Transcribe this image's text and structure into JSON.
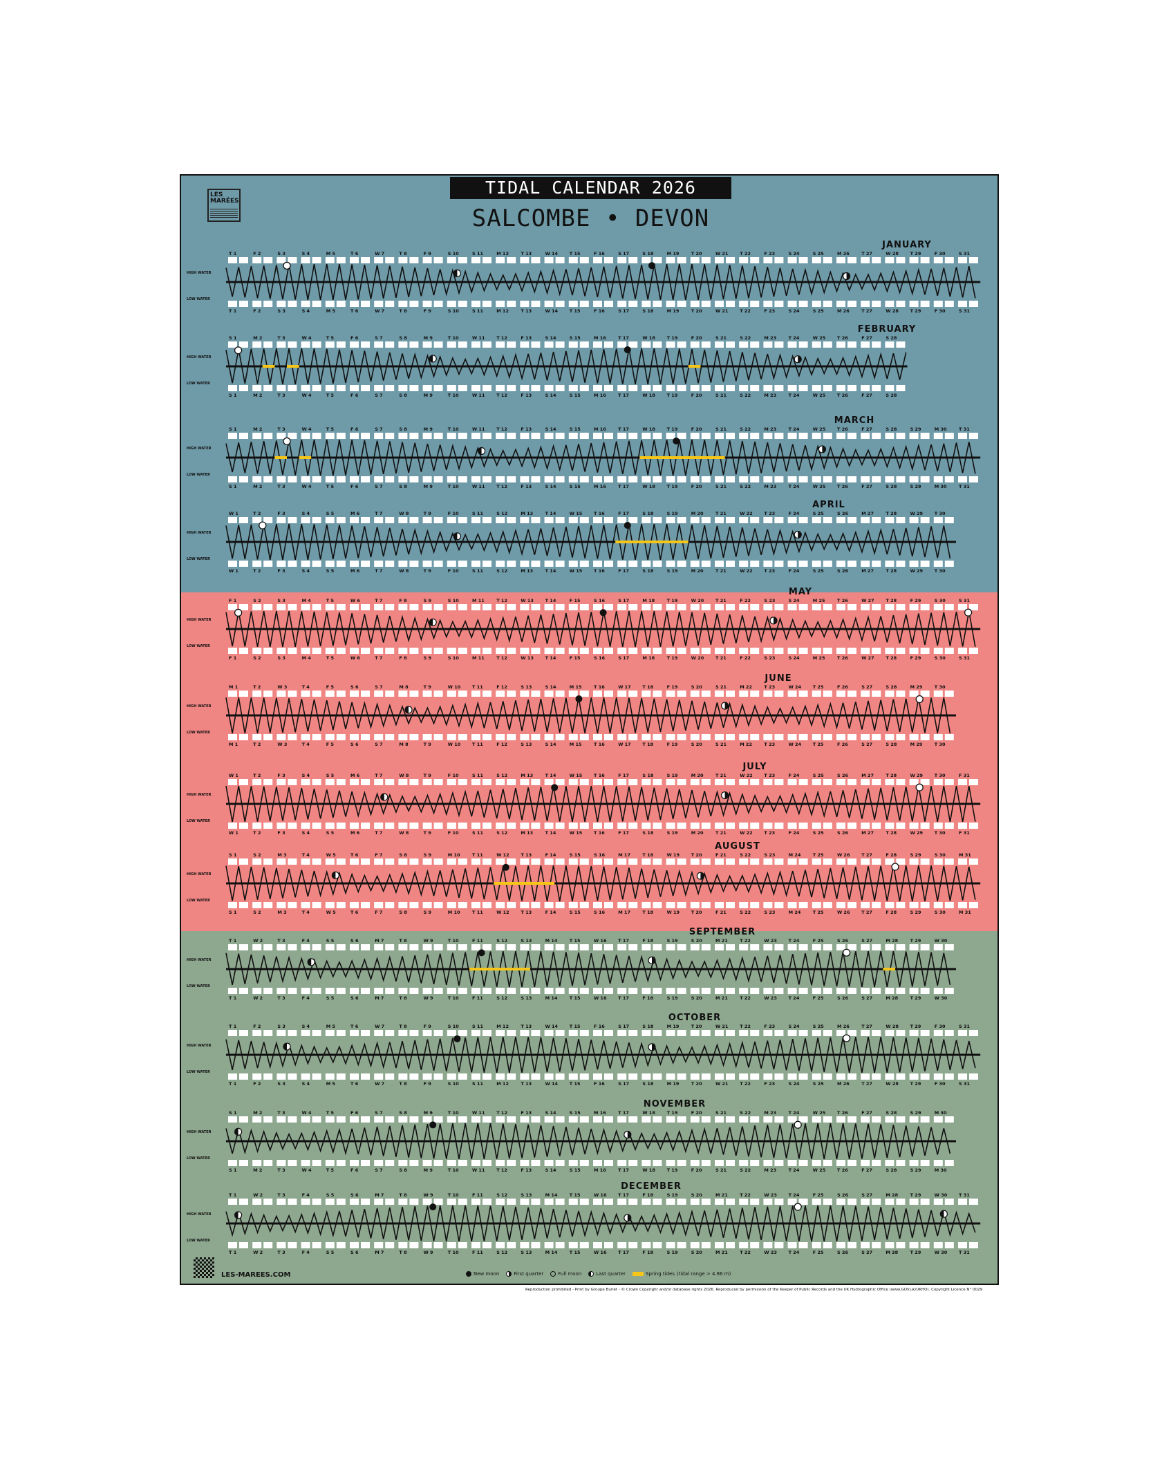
{
  "header": {
    "title": "TIDAL CALENDAR 2026",
    "subtitle": "SALCOMBE • DEVON",
    "logo_text": "LES MARÉES"
  },
  "weekday_letters": [
    "M",
    "T",
    "W",
    "T",
    "F",
    "S",
    "S"
  ],
  "side_labels": {
    "high": "HIGH WATER",
    "low": "LOW WATER"
  },
  "colors": {
    "q1_band": "#6f9aa8",
    "q2_band": "#f08683",
    "q3_band": "#8ea78f",
    "spring_tide": "#f5c518",
    "ink": "#111111",
    "label_box": "#ffffff"
  },
  "months": [
    {
      "name": "JANUARY",
      "days": 31,
      "first_weekday": 3,
      "moons": [
        {
          "day": 3,
          "phase": "full"
        },
        {
          "day": 10,
          "phase": "last"
        },
        {
          "day": 18,
          "phase": "new"
        },
        {
          "day": 26,
          "phase": "first"
        }
      ],
      "spring_tides": []
    },
    {
      "name": "FEBRUARY",
      "days": 28,
      "first_weekday": 6,
      "moons": [
        {
          "day": 1,
          "phase": "full"
        },
        {
          "day": 9,
          "phase": "last"
        },
        {
          "day": 17,
          "phase": "new"
        },
        {
          "day": 24,
          "phase": "first"
        }
      ],
      "spring_tides": [
        [
          2.5,
          3
        ],
        [
          3.5,
          4
        ],
        [
          20,
          20.5
        ]
      ]
    },
    {
      "name": "MARCH",
      "days": 31,
      "first_weekday": 6,
      "moons": [
        {
          "day": 3,
          "phase": "full"
        },
        {
          "day": 11,
          "phase": "last"
        },
        {
          "day": 19,
          "phase": "new"
        },
        {
          "day": 25,
          "phase": "first"
        }
      ],
      "spring_tides": [
        [
          3,
          3.5
        ],
        [
          4,
          4.5
        ],
        [
          18,
          21.5
        ]
      ]
    },
    {
      "name": "APRIL",
      "days": 30,
      "first_weekday": 2,
      "moons": [
        {
          "day": 2,
          "phase": "full"
        },
        {
          "day": 10,
          "phase": "last"
        },
        {
          "day": 17,
          "phase": "new"
        },
        {
          "day": 24,
          "phase": "first"
        }
      ],
      "spring_tides": [
        [
          17,
          20
        ]
      ]
    },
    {
      "name": "MAY",
      "days": 31,
      "first_weekday": 4,
      "moons": [
        {
          "day": 1,
          "phase": "full"
        },
        {
          "day": 9,
          "phase": "last"
        },
        {
          "day": 16,
          "phase": "new"
        },
        {
          "day": 23,
          "phase": "first"
        },
        {
          "day": 31,
          "phase": "full"
        }
      ],
      "spring_tides": []
    },
    {
      "name": "JUNE",
      "days": 30,
      "first_weekday": 0,
      "moons": [
        {
          "day": 8,
          "phase": "last"
        },
        {
          "day": 15,
          "phase": "new"
        },
        {
          "day": 21,
          "phase": "first"
        },
        {
          "day": 29,
          "phase": "full"
        }
      ],
      "spring_tides": []
    },
    {
      "name": "JULY",
      "days": 31,
      "first_weekday": 2,
      "moons": [
        {
          "day": 7,
          "phase": "last"
        },
        {
          "day": 14,
          "phase": "new"
        },
        {
          "day": 21,
          "phase": "first"
        },
        {
          "day": 29,
          "phase": "full"
        }
      ],
      "spring_tides": []
    },
    {
      "name": "AUGUST",
      "days": 31,
      "first_weekday": 5,
      "moons": [
        {
          "day": 5,
          "phase": "last"
        },
        {
          "day": 12,
          "phase": "new"
        },
        {
          "day": 20,
          "phase": "first"
        },
        {
          "day": 28,
          "phase": "full"
        }
      ],
      "spring_tides": [
        [
          12,
          14.5
        ]
      ]
    },
    {
      "name": "SEPTEMBER",
      "days": 30,
      "first_weekday": 1,
      "moons": [
        {
          "day": 4,
          "phase": "last"
        },
        {
          "day": 11,
          "phase": "new"
        },
        {
          "day": 18,
          "phase": "first"
        },
        {
          "day": 26,
          "phase": "full"
        }
      ],
      "spring_tides": [
        [
          11,
          13.5
        ],
        [
          28,
          28.5
        ]
      ]
    },
    {
      "name": "OCTOBER",
      "days": 31,
      "first_weekday": 3,
      "moons": [
        {
          "day": 3,
          "phase": "last"
        },
        {
          "day": 10,
          "phase": "new"
        },
        {
          "day": 18,
          "phase": "first"
        },
        {
          "day": 26,
          "phase": "full"
        }
      ],
      "spring_tides": []
    },
    {
      "name": "NOVEMBER",
      "days": 30,
      "first_weekday": 6,
      "moons": [
        {
          "day": 1,
          "phase": "last"
        },
        {
          "day": 9,
          "phase": "new"
        },
        {
          "day": 17,
          "phase": "first"
        },
        {
          "day": 24,
          "phase": "full"
        }
      ],
      "spring_tides": []
    },
    {
      "name": "DECEMBER",
      "days": 31,
      "first_weekday": 1,
      "moons": [
        {
          "day": 1,
          "phase": "last"
        },
        {
          "day": 9,
          "phase": "new"
        },
        {
          "day": 17,
          "phase": "first"
        },
        {
          "day": 24,
          "phase": "full"
        },
        {
          "day": 30,
          "phase": "last"
        }
      ],
      "spring_tides": []
    }
  ],
  "legend": {
    "new": "New moon",
    "first": "First quarter",
    "full": "Full moon",
    "last": "Last quarter",
    "spring": "Spring tides",
    "spring_note": "(tidal range > 4.86 m)"
  },
  "site": "LES-MAREES.COM",
  "footer": "Reproduction prohibited - Print by Groupe Burlet - © Crown Copyright and/or database rights 2026. Reproduced by permission of the Keeper of Public Records and the UK Hydrographic Office (www.GOV.uk/UKHO). Copyright Licence N° 0029"
}
